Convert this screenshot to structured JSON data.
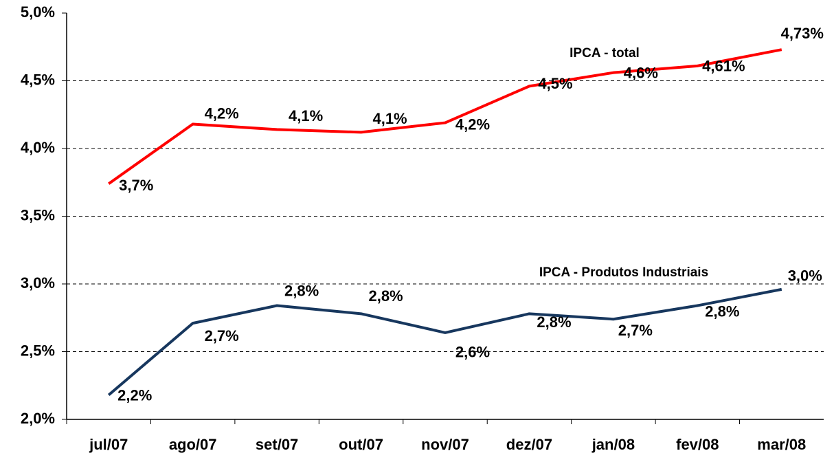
{
  "chart_data": {
    "type": "line",
    "categories": [
      "jul/07",
      "ago/07",
      "set/07",
      "out/07",
      "nov/07",
      "dez/07",
      "jan/08",
      "fev/08",
      "mar/08"
    ],
    "series": [
      {
        "name": "IPCA - total",
        "color": "#ff0000",
        "values": [
          3.74,
          4.18,
          4.14,
          4.12,
          4.19,
          4.46,
          4.56,
          4.61,
          4.73
        ],
        "value_labels": [
          "3,7%",
          "4,2%",
          "4,1%",
          "4,1%",
          "4,2%",
          "4,5%",
          "4,6%",
          "4,61%",
          "4,73%"
        ]
      },
      {
        "name": "IPCA - Produtos Industriais",
        "color": "#17375e",
        "values": [
          2.18,
          2.71,
          2.84,
          2.78,
          2.64,
          2.78,
          2.74,
          2.84,
          2.96
        ],
        "value_labels": [
          "2,2%",
          "2,7%",
          "2,8%",
          "2,8%",
          "2,6%",
          "2,8%",
          "2,7%",
          "2,8%",
          "3,0%"
        ]
      }
    ],
    "ylim": [
      2.0,
      5.0
    ],
    "yticks": [
      {
        "value": 2.0,
        "label": "2,0%"
      },
      {
        "value": 2.5,
        "label": "2,5%"
      },
      {
        "value": 3.0,
        "label": "3,0%"
      },
      {
        "value": 3.5,
        "label": "3,5%"
      },
      {
        "value": 4.0,
        "label": "4,0%"
      },
      {
        "value": 4.5,
        "label": "4,5%"
      },
      {
        "value": 5.0,
        "label": "5,0%"
      }
    ],
    "grid": true
  }
}
